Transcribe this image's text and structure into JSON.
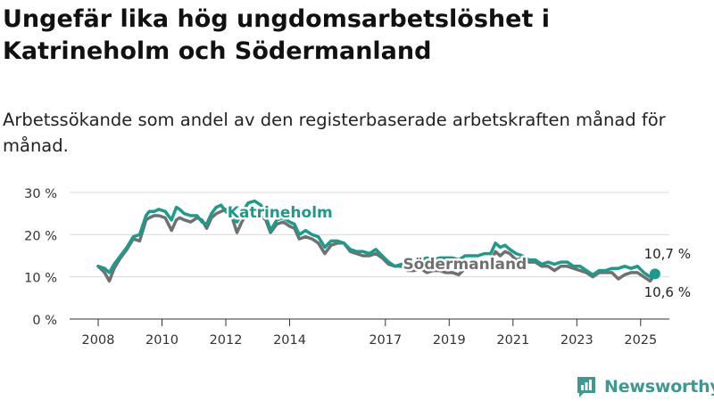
{
  "title": "Ungefär lika hög ungdomsarbetslöshet i Katrineholm och Södermanland",
  "subtitle": "Arbetssökande som andel av den registerbaserade arbetskraften månad för månad.",
  "brand": {
    "name": "Newsworthy"
  },
  "colors": {
    "katrineholm": "#1a9b8c",
    "sodermanland": "#707070",
    "grid": "#d9d9d9",
    "axis": "#333333",
    "brand": "#3d9a92"
  },
  "chart_data": {
    "type": "line",
    "title": "Ungefär lika hög ungdomsarbetslöshet i Katrineholm och Södermanland",
    "xlim": [
      2008,
      2025.9
    ],
    "ylim": [
      0,
      30
    ],
    "y_ticks": [
      {
        "value": 0,
        "label": "0 %"
      },
      {
        "value": 10,
        "label": "10 %"
      },
      {
        "value": 20,
        "label": "20 %"
      },
      {
        "value": 30,
        "label": "30 %"
      }
    ],
    "x_ticks": [
      {
        "value": 2008,
        "label": "2008"
      },
      {
        "value": 2010,
        "label": "2010"
      },
      {
        "value": 2012,
        "label": "2012"
      },
      {
        "value": 2014,
        "label": "2014"
      },
      {
        "value": 2017,
        "label": "2017"
      },
      {
        "value": 2019,
        "label": "2019"
      },
      {
        "value": 2021,
        "label": "2021"
      },
      {
        "value": 2023,
        "label": "2023"
      },
      {
        "value": 2025,
        "label": "2025"
      }
    ],
    "grid": true,
    "series": [
      {
        "name": "Södermanland",
        "end_label": "10,6 %",
        "x": [
          2008.0,
          2008.2,
          2008.35,
          2008.5,
          2008.7,
          2008.9,
          2009.1,
          2009.3,
          2009.5,
          2009.6,
          2009.75,
          2009.9,
          2010.1,
          2010.3,
          2010.45,
          2010.55,
          2010.7,
          2010.9,
          2011.1,
          2011.25,
          2011.4,
          2011.55,
          2011.7,
          2011.85,
          2012.0,
          2012.2,
          2012.35,
          2012.5,
          2012.7,
          2012.9,
          2013.1,
          2013.25,
          2013.4,
          2013.6,
          2013.8,
          2014.0,
          2014.15,
          2014.3,
          2014.5,
          2014.7,
          2014.9,
          2015.1,
          2015.3,
          2015.5,
          2015.7,
          2015.9,
          2016.1,
          2016.3,
          2016.5,
          2016.7,
          2016.9,
          2017.1,
          2017.3,
          2017.5,
          2017.7,
          2017.9,
          2018.1,
          2018.3,
          2018.5,
          2018.7,
          2018.9,
          2019.1,
          2019.3,
          2019.5,
          2019.7,
          2019.9,
          2020.1,
          2020.3,
          2020.45,
          2020.6,
          2020.75,
          2020.9,
          2021.1,
          2021.3,
          2021.5,
          2021.7,
          2021.9,
          2022.1,
          2022.3,
          2022.5,
          2022.7,
          2022.9,
          2023.1,
          2023.3,
          2023.5,
          2023.7,
          2023.9,
          2024.1,
          2024.3,
          2024.5,
          2024.7,
          2024.9,
          2025.1,
          2025.3,
          2025.45
        ],
        "y": [
          12.5,
          11.0,
          9.0,
          12.0,
          14.5,
          16.5,
          19.0,
          18.5,
          23.5,
          24.0,
          24.5,
          24.5,
          24.0,
          21.0,
          23.5,
          24.0,
          23.5,
          23.0,
          24.0,
          23.5,
          21.5,
          24.0,
          25.0,
          25.5,
          26.0,
          24.0,
          20.5,
          23.0,
          25.5,
          25.0,
          24.5,
          23.5,
          20.5,
          22.5,
          23.0,
          22.0,
          21.5,
          19.0,
          19.5,
          19.0,
          18.0,
          15.5,
          17.5,
          18.0,
          18.0,
          16.0,
          15.5,
          15.0,
          15.0,
          15.5,
          14.5,
          13.0,
          12.5,
          12.5,
          11.5,
          11.5,
          12.0,
          11.0,
          11.5,
          11.5,
          11.0,
          11.0,
          10.5,
          12.0,
          12.5,
          12.0,
          12.5,
          13.5,
          16.0,
          15.0,
          16.0,
          15.5,
          14.0,
          14.5,
          13.5,
          13.5,
          12.5,
          12.5,
          11.5,
          12.5,
          12.5,
          12.0,
          11.5,
          11.0,
          10.0,
          11.0,
          11.0,
          11.0,
          9.5,
          10.5,
          11.0,
          11.0,
          10.0,
          9.0,
          10.6
        ]
      },
      {
        "name": "Katrineholm",
        "end_label": "10,7 %",
        "x": [
          2008.0,
          2008.2,
          2008.35,
          2008.5,
          2008.7,
          2008.9,
          2009.1,
          2009.3,
          2009.5,
          2009.6,
          2009.75,
          2009.9,
          2010.1,
          2010.3,
          2010.45,
          2010.55,
          2010.7,
          2010.9,
          2011.1,
          2011.25,
          2011.4,
          2011.55,
          2011.7,
          2011.85,
          2012.0,
          2012.2,
          2012.35,
          2012.5,
          2012.7,
          2012.9,
          2013.1,
          2013.25,
          2013.4,
          2013.6,
          2013.8,
          2014.0,
          2014.15,
          2014.3,
          2014.5,
          2014.7,
          2014.9,
          2015.1,
          2015.3,
          2015.5,
          2015.7,
          2015.9,
          2016.1,
          2016.3,
          2016.5,
          2016.7,
          2016.9,
          2017.1,
          2017.3,
          2017.5,
          2017.7,
          2017.9,
          2018.1,
          2018.3,
          2018.5,
          2018.7,
          2018.9,
          2019.1,
          2019.3,
          2019.5,
          2019.7,
          2019.9,
          2020.1,
          2020.3,
          2020.45,
          2020.6,
          2020.75,
          2020.9,
          2021.1,
          2021.3,
          2021.5,
          2021.7,
          2021.9,
          2022.1,
          2022.3,
          2022.5,
          2022.7,
          2022.9,
          2023.1,
          2023.3,
          2023.5,
          2023.7,
          2023.9,
          2024.1,
          2024.3,
          2024.5,
          2024.7,
          2024.9,
          2025.1,
          2025.3,
          2025.45
        ],
        "y": [
          12.5,
          12.0,
          11.0,
          13.0,
          15.0,
          17.0,
          19.5,
          20.0,
          24.5,
          25.5,
          25.5,
          26.0,
          25.5,
          23.5,
          26.5,
          26.0,
          25.0,
          24.5,
          24.5,
          23.0,
          22.5,
          25.0,
          26.5,
          27.0,
          25.5,
          24.0,
          23.0,
          25.0,
          27.5,
          28.0,
          27.0,
          24.5,
          21.0,
          23.5,
          24.0,
          23.0,
          22.5,
          20.0,
          21.0,
          20.0,
          19.5,
          17.0,
          18.5,
          18.5,
          18.0,
          16.5,
          16.0,
          16.0,
          15.5,
          16.5,
          15.0,
          13.5,
          12.5,
          13.0,
          13.5,
          13.5,
          14.0,
          14.5,
          14.0,
          14.5,
          14.5,
          14.5,
          14.0,
          15.0,
          15.0,
          15.0,
          15.5,
          15.5,
          18.0,
          17.0,
          17.5,
          16.5,
          15.5,
          15.0,
          14.0,
          14.0,
          13.0,
          13.5,
          13.0,
          13.5,
          13.5,
          12.5,
          12.5,
          11.5,
          10.5,
          11.5,
          11.5,
          12.0,
          12.0,
          12.5,
          12.0,
          12.5,
          11.0,
          10.0,
          10.7
        ]
      }
    ]
  }
}
